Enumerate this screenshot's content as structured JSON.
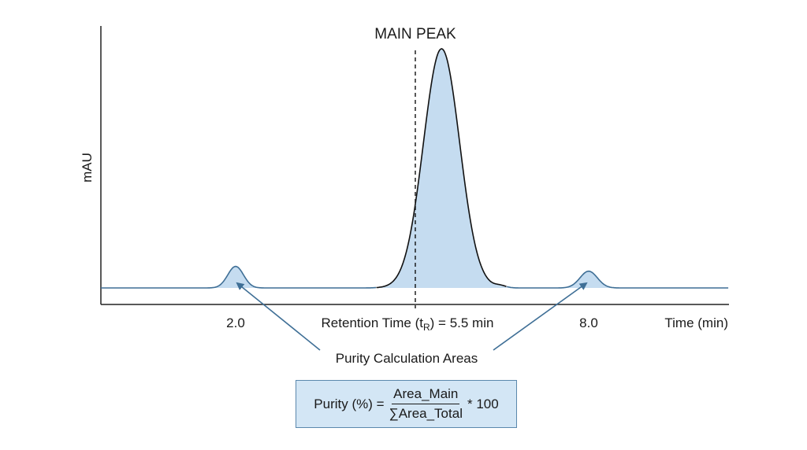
{
  "labels": {
    "main_peak": "MAIN PEAK",
    "y_axis": "mAU",
    "x_axis": "Time (min)",
    "tick_left": "2.0",
    "tick_right": "8.0",
    "retention_prefix": "Retention Time (t",
    "retention_sub": "R",
    "retention_suffix": ") = 5.5 min",
    "purity_areas": "Purity Calculation Areas"
  },
  "formula": {
    "lhs": "Purity (%) =",
    "numerator": "Area_Main",
    "denominator": "∑Area_Total",
    "rhs": "* 100"
  },
  "chart_data": {
    "type": "line",
    "x_unit": "min",
    "retention_time": 5.5,
    "peaks": [
      {
        "center": 2.0,
        "relative_height": 0.09,
        "shaded": true
      },
      {
        "center": 5.5,
        "relative_height": 1.0,
        "shaded": true
      },
      {
        "center": 6.5,
        "relative_height": 0.008,
        "shaded": false
      },
      {
        "center": 8.0,
        "relative_height": 0.07,
        "shaded": true
      }
    ]
  },
  "colors": {
    "fill": "#c5dcf0",
    "line": "#111111",
    "baseline": "#3f6f96",
    "arrow": "#3f6f96"
  }
}
